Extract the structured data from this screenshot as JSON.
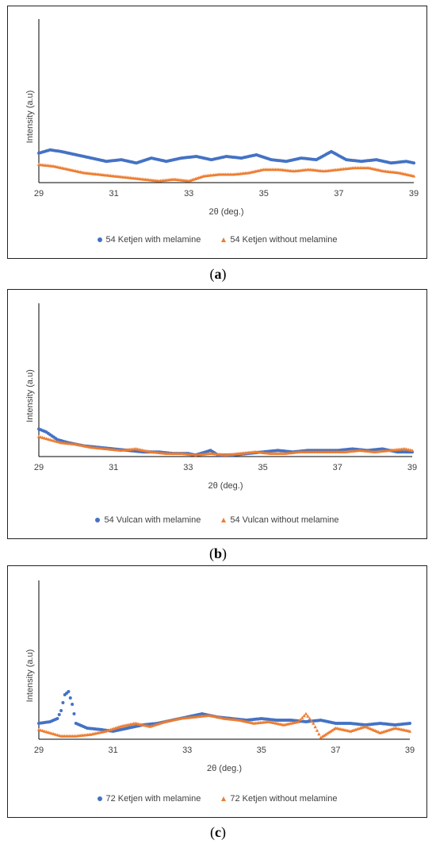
{
  "colors": {
    "series1": "#4472C4",
    "series2": "#ED7D31",
    "axis": "#000000",
    "text": "#404040"
  },
  "chart_data": [
    {
      "type": "scatter",
      "caption": "a",
      "xlabel": "2θ (deg.)",
      "ylabel": "Intensity (a.u)",
      "xlim": [
        29,
        39
      ],
      "ylim": [
        0,
        100
      ],
      "x_ticks": [
        "29",
        "31",
        "33",
        "35",
        "37",
        "39"
      ],
      "grid": false,
      "legend": "bottom",
      "series": [
        {
          "name": "54 Ketjen with melamine",
          "marker": "circle",
          "points": [
            [
              29,
              18
            ],
            [
              29.3,
              20
            ],
            [
              29.6,
              19
            ],
            [
              30,
              17
            ],
            [
              30.4,
              15
            ],
            [
              30.8,
              13
            ],
            [
              31.2,
              14
            ],
            [
              31.6,
              12
            ],
            [
              32,
              15
            ],
            [
              32.4,
              13
            ],
            [
              32.8,
              15
            ],
            [
              33.2,
              16
            ],
            [
              33.6,
              14
            ],
            [
              34,
              16
            ],
            [
              34.4,
              15
            ],
            [
              34.8,
              17
            ],
            [
              35.2,
              14
            ],
            [
              35.6,
              13
            ],
            [
              36,
              15
            ],
            [
              36.4,
              14
            ],
            [
              36.8,
              19
            ],
            [
              37.2,
              14
            ],
            [
              37.6,
              13
            ],
            [
              38,
              14
            ],
            [
              38.4,
              12
            ],
            [
              38.8,
              13
            ],
            [
              39,
              12
            ]
          ]
        },
        {
          "name": "54 Ketjen without melamine",
          "marker": "triangle",
          "points": [
            [
              29,
              11
            ],
            [
              29.4,
              10
            ],
            [
              29.8,
              8
            ],
            [
              30.2,
              6
            ],
            [
              30.6,
              5
            ],
            [
              31,
              4
            ],
            [
              31.4,
              3
            ],
            [
              31.8,
              2
            ],
            [
              32.2,
              1
            ],
            [
              32.6,
              2
            ],
            [
              33,
              1
            ],
            [
              33.4,
              4
            ],
            [
              33.8,
              5
            ],
            [
              34.2,
              5
            ],
            [
              34.6,
              6
            ],
            [
              35,
              8
            ],
            [
              35.4,
              8
            ],
            [
              35.8,
              7
            ],
            [
              36.2,
              8
            ],
            [
              36.6,
              7
            ],
            [
              37,
              8
            ],
            [
              37.4,
              9
            ],
            [
              37.8,
              9
            ],
            [
              38.2,
              7
            ],
            [
              38.6,
              6
            ],
            [
              39,
              4
            ]
          ]
        }
      ]
    },
    {
      "type": "scatter",
      "caption": "b",
      "xlabel": "2θ (deg.)",
      "ylabel": "Intensity (a.u)",
      "xlim": [
        29,
        39
      ],
      "ylim": [
        0,
        100
      ],
      "x_ticks": [
        "29",
        "31",
        "33",
        "35",
        "37",
        "39"
      ],
      "grid": false,
      "legend": "bottom",
      "series": [
        {
          "name": "54 Vulcan with melamine",
          "marker": "circle",
          "points": [
            [
              29,
              18
            ],
            [
              29.2,
              16
            ],
            [
              29.5,
              11
            ],
            [
              29.8,
              9
            ],
            [
              30.2,
              7
            ],
            [
              30.6,
              6
            ],
            [
              31,
              5
            ],
            [
              31.4,
              4
            ],
            [
              31.8,
              3
            ],
            [
              32.2,
              3
            ],
            [
              32.6,
              2
            ],
            [
              33,
              2
            ],
            [
              33.2,
              1
            ],
            [
              33.6,
              4
            ],
            [
              33.8,
              1
            ],
            [
              34.2,
              1
            ],
            [
              34.6,
              2
            ],
            [
              35,
              3
            ],
            [
              35.4,
              4
            ],
            [
              35.8,
              3
            ],
            [
              36.2,
              4
            ],
            [
              36.6,
              4
            ],
            [
              37,
              4
            ],
            [
              37.4,
              5
            ],
            [
              37.8,
              4
            ],
            [
              38.2,
              5
            ],
            [
              38.6,
              3
            ],
            [
              39,
              3
            ]
          ]
        },
        {
          "name": "54 Vulcan without melamine",
          "marker": "triangle",
          "points": [
            [
              29,
              13
            ],
            [
              29.3,
              11
            ],
            [
              29.6,
              9
            ],
            [
              30,
              8
            ],
            [
              30.4,
              6
            ],
            [
              30.8,
              5
            ],
            [
              31.2,
              4
            ],
            [
              31.6,
              5
            ],
            [
              32,
              3
            ],
            [
              32.4,
              2
            ],
            [
              32.8,
              2
            ],
            [
              33.2,
              1
            ],
            [
              33.6,
              2
            ],
            [
              34,
              1
            ],
            [
              34.4,
              2
            ],
            [
              34.8,
              3
            ],
            [
              35.2,
              2
            ],
            [
              35.6,
              2
            ],
            [
              36,
              3
            ],
            [
              36.4,
              3
            ],
            [
              36.8,
              3
            ],
            [
              37.2,
              3
            ],
            [
              37.6,
              4
            ],
            [
              38,
              3
            ],
            [
              38.4,
              4
            ],
            [
              38.8,
              5
            ],
            [
              39,
              4
            ]
          ]
        }
      ]
    },
    {
      "type": "scatter",
      "caption": "c",
      "xlabel": "2θ (deg.)",
      "ylabel": "Intensity (a.u)",
      "xlim": [
        29,
        39
      ],
      "ylim": [
        0,
        100
      ],
      "x_ticks": [
        "29",
        "31",
        "33",
        "35",
        "37",
        "39"
      ],
      "grid": false,
      "legend": "bottom",
      "series": [
        {
          "name": "72 Ketjen with melamine",
          "marker": "circle",
          "points": [
            [
              29,
              10
            ],
            [
              29.3,
              11
            ],
            [
              29.5,
              13
            ],
            [
              29.6,
              18
            ],
            [
              29.7,
              28
            ],
            [
              29.8,
              30
            ],
            [
              29.9,
              22
            ],
            [
              30,
              10
            ],
            [
              30.3,
              7
            ],
            [
              30.7,
              6
            ],
            [
              31,
              5
            ],
            [
              31.4,
              7
            ],
            [
              31.8,
              9
            ],
            [
              32.2,
              10
            ],
            [
              32.6,
              12
            ],
            [
              33,
              14
            ],
            [
              33.4,
              16
            ],
            [
              33.8,
              14
            ],
            [
              34.2,
              13
            ],
            [
              34.6,
              12
            ],
            [
              35,
              13
            ],
            [
              35.4,
              12
            ],
            [
              35.8,
              12
            ],
            [
              36.2,
              11
            ],
            [
              36.6,
              12
            ],
            [
              37,
              10
            ],
            [
              37.4,
              10
            ],
            [
              37.8,
              9
            ],
            [
              38.2,
              10
            ],
            [
              38.6,
              9
            ],
            [
              39,
              10
            ]
          ]
        },
        {
          "name": "72 Ketjen without melamine",
          "marker": "triangle",
          "points": [
            [
              29,
              6
            ],
            [
              29.3,
              4
            ],
            [
              29.6,
              2
            ],
            [
              30,
              2
            ],
            [
              30.4,
              3
            ],
            [
              30.8,
              5
            ],
            [
              31.2,
              8
            ],
            [
              31.6,
              10
            ],
            [
              32,
              8
            ],
            [
              32.4,
              11
            ],
            [
              32.8,
              13
            ],
            [
              33.2,
              14
            ],
            [
              33.6,
              15
            ],
            [
              34,
              13
            ],
            [
              34.4,
              12
            ],
            [
              34.8,
              10
            ],
            [
              35.2,
              11
            ],
            [
              35.6,
              9
            ],
            [
              36,
              11
            ],
            [
              36.2,
              16
            ],
            [
              36.4,
              10
            ],
            [
              36.6,
              1
            ],
            [
              37,
              7
            ],
            [
              37.4,
              5
            ],
            [
              37.8,
              8
            ],
            [
              38.2,
              4
            ],
            [
              38.6,
              7
            ],
            [
              39,
              5
            ]
          ]
        }
      ]
    }
  ]
}
